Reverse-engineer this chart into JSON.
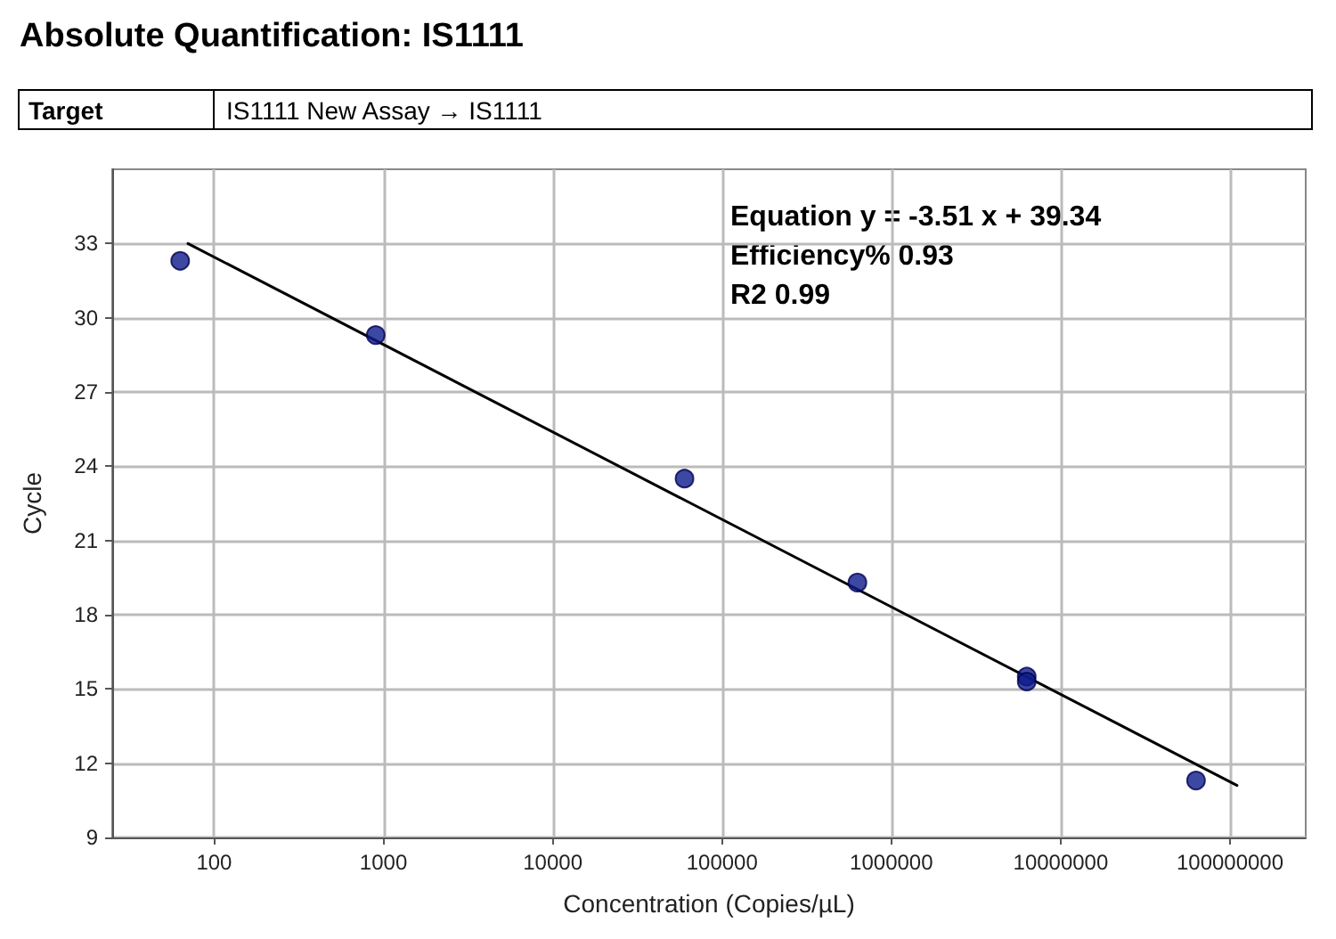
{
  "chart_data": {
    "type": "scatter",
    "title": "Absolute Quantification: IS1111",
    "xlabel": "Concentration (Copies/µL)",
    "ylabel": "Cycle",
    "annotations": [
      "Target",
      "IS1111 New Assay → IS1111",
      "Equation y = -3.51 x + 39.34",
      "Efficiency% 0.93",
      "R2 0.99"
    ],
    "log": "x",
    "xlim": [
      25,
      280000000
    ],
    "xticks": [
      100,
      1000,
      10000,
      100000,
      1000000,
      10000000,
      100000000
    ],
    "ylim": [
      9,
      36
    ],
    "yticks": [
      9,
      12,
      15,
      18,
      21,
      24,
      27,
      30,
      33
    ],
    "grid": true,
    "series": [
      {
        "color": "#0d1a8c",
        "marker": "circle",
        "x": [
          63,
          900,
          60000,
          630000,
          6300000,
          6300000,
          63000000
        ],
        "values": [
          32.3,
          29.3,
          23.5,
          19.3,
          15.5,
          15.3,
          11.3
        ]
      },
      {
        "type": "line",
        "color": "#000000",
        "marker": "none",
        "line_style": "solid",
        "x": [
          70,
          110000000
        ],
        "values": [
          33,
          11.1
        ]
      }
    ]
  }
}
